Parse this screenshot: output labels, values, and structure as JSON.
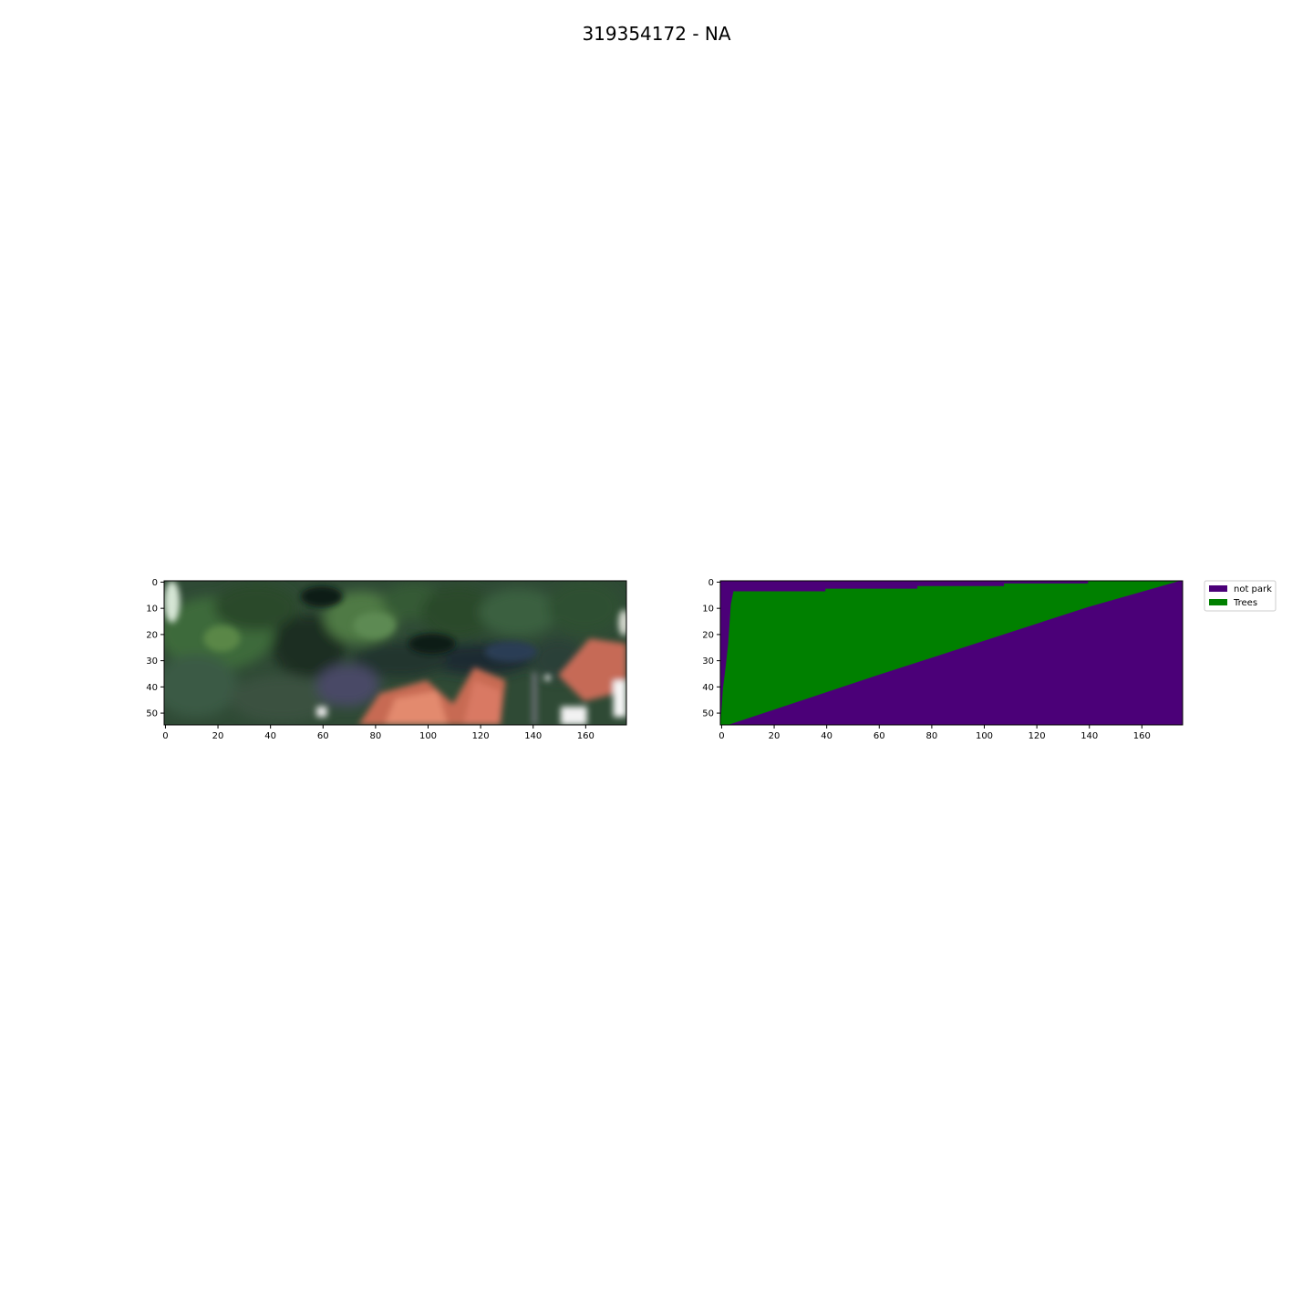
{
  "figure": {
    "title": "319354172 - NA"
  },
  "panels": [
    {
      "kind": "satellite-rgb-image",
      "x_ticks": [
        "0",
        "20",
        "40",
        "60",
        "80",
        "100",
        "120",
        "140",
        "160"
      ],
      "y_ticks": [
        "0",
        "10",
        "20",
        "30",
        "40",
        "50"
      ]
    },
    {
      "kind": "segmentation-mask",
      "x_ticks": [
        "0",
        "20",
        "40",
        "60",
        "80",
        "100",
        "120",
        "140",
        "160"
      ],
      "y_ticks": [
        "0",
        "10",
        "20",
        "30",
        "40",
        "50"
      ]
    }
  ],
  "image_size": {
    "width": 176,
    "height": 55
  },
  "x_tick_values": [
    0,
    20,
    40,
    60,
    80,
    100,
    120,
    140,
    160
  ],
  "y_tick_values": [
    0,
    10,
    20,
    30,
    40,
    50
  ],
  "legend": {
    "placement": "outside-upper-right",
    "entries": [
      {
        "label": "not park",
        "color": "#4b0078"
      },
      {
        "label": "Trees",
        "color": "#008000"
      }
    ]
  },
  "mask": {
    "class_colors": {
      "not_park": "#4b0078",
      "trees": "#008000"
    },
    "trees_region": {
      "top_edge_row": 4,
      "top_edge_row_right": 0,
      "left_edge_points": [
        [
          0,
          55
        ],
        [
          1,
          41
        ],
        [
          2,
          33
        ],
        [
          3,
          24
        ],
        [
          4,
          9
        ],
        [
          5,
          4
        ]
      ],
      "diagonal_bottom_edge": [
        [
          3,
          55
        ],
        [
          60,
          36
        ],
        [
          100,
          23
        ],
        [
          140,
          10
        ],
        [
          175,
          0
        ]
      ]
    }
  }
}
